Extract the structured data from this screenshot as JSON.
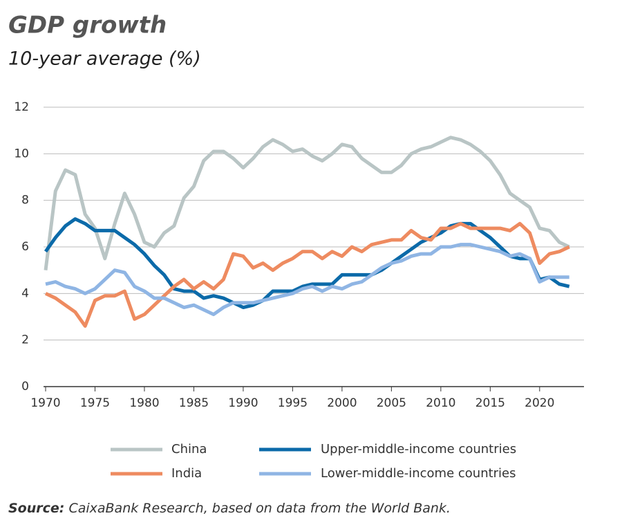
{
  "chart_data": {
    "type": "line",
    "title": "GDP growth",
    "subtitle": "10-year average (%)",
    "x": [
      1970,
      1971,
      1972,
      1973,
      1974,
      1975,
      1976,
      1977,
      1978,
      1979,
      1980,
      1981,
      1982,
      1983,
      1984,
      1985,
      1986,
      1987,
      1988,
      1989,
      1990,
      1991,
      1992,
      1993,
      1994,
      1995,
      1996,
      1997,
      1998,
      1999,
      2000,
      2001,
      2002,
      2003,
      2004,
      2005,
      2006,
      2007,
      2008,
      2009,
      2010,
      2011,
      2012,
      2013,
      2014,
      2015,
      2016,
      2017,
      2018,
      2019,
      2020,
      2021,
      2022,
      2023
    ],
    "series": [
      {
        "name": "China",
        "color": "#b9c5c5",
        "values": [
          5.0,
          8.4,
          9.3,
          9.1,
          7.4,
          6.8,
          5.5,
          7.0,
          8.3,
          7.4,
          6.2,
          6.0,
          6.6,
          6.9,
          8.1,
          8.6,
          9.7,
          10.1,
          10.1,
          9.8,
          9.4,
          9.8,
          10.3,
          10.6,
          10.4,
          10.1,
          10.2,
          9.9,
          9.7,
          10.0,
          10.4,
          10.3,
          9.8,
          9.5,
          9.2,
          9.2,
          9.5,
          10.0,
          10.2,
          10.3,
          10.5,
          10.7,
          10.6,
          10.4,
          10.1,
          9.7,
          9.1,
          8.3,
          8.0,
          7.7,
          6.8,
          6.7,
          6.2,
          6.0
        ]
      },
      {
        "name": "Upper-middle-income countries",
        "color": "#0b6aa9",
        "values": [
          5.8,
          6.4,
          6.9,
          7.2,
          7.0,
          6.7,
          6.7,
          6.7,
          6.4,
          6.1,
          5.7,
          5.2,
          4.8,
          4.2,
          4.1,
          4.1,
          3.8,
          3.9,
          3.8,
          3.6,
          3.4,
          3.5,
          3.7,
          4.1,
          4.1,
          4.1,
          4.3,
          4.4,
          4.4,
          4.4,
          4.8,
          4.8,
          4.8,
          4.8,
          5.0,
          5.3,
          5.6,
          5.9,
          6.2,
          6.4,
          6.6,
          6.9,
          7.0,
          7.0,
          6.7,
          6.4,
          6.0,
          5.6,
          5.5,
          5.5,
          4.6,
          4.7,
          4.4,
          4.3
        ]
      },
      {
        "name": "India",
        "color": "#ee8b60",
        "values": [
          4.0,
          3.8,
          3.5,
          3.2,
          2.6,
          3.7,
          3.9,
          3.9,
          4.1,
          2.9,
          3.1,
          3.5,
          3.9,
          4.3,
          4.6,
          4.2,
          4.5,
          4.2,
          4.6,
          5.7,
          5.6,
          5.1,
          5.3,
          5.0,
          5.3,
          5.5,
          5.8,
          5.8,
          5.5,
          5.8,
          5.6,
          6.0,
          5.8,
          6.1,
          6.2,
          6.3,
          6.3,
          6.7,
          6.4,
          6.3,
          6.8,
          6.8,
          7.0,
          6.8,
          6.8,
          6.8,
          6.8,
          6.7,
          7.0,
          6.6,
          5.3,
          5.7,
          5.8,
          6.0
        ]
      },
      {
        "name": "Lower-middle-income countries",
        "color": "#8fb5e4",
        "values": [
          4.4,
          4.5,
          4.3,
          4.2,
          4.0,
          4.2,
          4.6,
          5.0,
          4.9,
          4.3,
          4.1,
          3.8,
          3.8,
          3.6,
          3.4,
          3.5,
          3.3,
          3.1,
          3.4,
          3.6,
          3.6,
          3.6,
          3.7,
          3.8,
          3.9,
          4.0,
          4.2,
          4.3,
          4.1,
          4.3,
          4.2,
          4.4,
          4.5,
          4.8,
          5.1,
          5.3,
          5.4,
          5.6,
          5.7,
          5.7,
          6.0,
          6.0,
          6.1,
          6.1,
          6.0,
          5.9,
          5.8,
          5.6,
          5.7,
          5.5,
          4.5,
          4.7,
          4.7,
          4.7
        ]
      }
    ],
    "xlim": [
      1970,
      2024
    ],
    "xticks": [
      1970,
      1975,
      1980,
      1985,
      1990,
      1995,
      2000,
      2005,
      2010,
      2015,
      2020
    ],
    "ylim": [
      0,
      12
    ],
    "yticks": [
      0,
      2,
      4,
      6,
      8,
      10,
      12
    ],
    "grid": true,
    "source_label": "Source:",
    "source_text": "CaixaBank Research, based on data from the World Bank."
  }
}
